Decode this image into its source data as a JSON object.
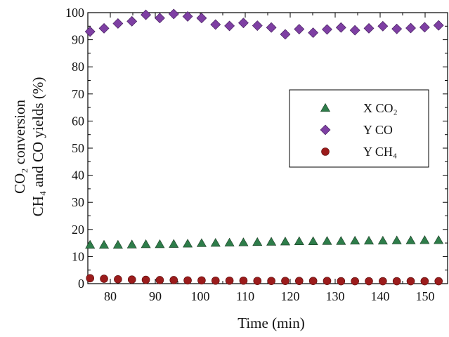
{
  "chart_data": {
    "type": "scatter",
    "title": "",
    "xlabel": "Time (min)",
    "ylabel": {
      "line1": "CO₂ conversion",
      "line2": "CH₄ and CO yields (%)"
    },
    "xlim": [
      75,
      155
    ],
    "ylim": [
      0,
      100
    ],
    "xticks": [
      80,
      90,
      100,
      110,
      120,
      130,
      140,
      150
    ],
    "yticks": [
      0,
      10,
      20,
      30,
      40,
      50,
      60,
      70,
      80,
      90,
      100
    ],
    "grid": false,
    "legend_position": "right-middle",
    "x": [
      75.5,
      78.6,
      81.7,
      84.8,
      87.9,
      91.0,
      94.1,
      97.2,
      100.3,
      103.4,
      106.5,
      109.6,
      112.7,
      115.8,
      118.9,
      122.0,
      125.1,
      128.2,
      131.3,
      134.4,
      137.5,
      140.6,
      143.7,
      146.8,
      149.9,
      153.0
    ],
    "series": [
      {
        "name": "X CO₂",
        "marker": "triangle",
        "color": "#2e7d4a",
        "values": [
          14.3,
          14.3,
          14.3,
          14.4,
          14.5,
          14.5,
          14.6,
          14.7,
          14.9,
          15.0,
          15.1,
          15.2,
          15.3,
          15.4,
          15.5,
          15.6,
          15.6,
          15.7,
          15.7,
          15.8,
          15.8,
          15.8,
          15.9,
          15.9,
          16.0,
          16.0
        ]
      },
      {
        "name": "Y CO",
        "marker": "diamond",
        "color": "#7e3fa3",
        "values": [
          93.0,
          94.2,
          96.0,
          96.8,
          99.2,
          98.0,
          99.5,
          98.6,
          98.0,
          95.6,
          95.1,
          96.2,
          95.2,
          94.5,
          92.0,
          93.9,
          92.6,
          93.8,
          94.5,
          93.5,
          94.2,
          95.0,
          94.0,
          94.3,
          94.6,
          95.3
        ]
      },
      {
        "name": "Y CH₄",
        "marker": "circle",
        "color": "#9b1c1c",
        "values": [
          2.0,
          1.8,
          1.6,
          1.5,
          1.4,
          1.3,
          1.3,
          1.2,
          1.2,
          1.1,
          1.1,
          1.1,
          1.0,
          1.0,
          1.0,
          1.0,
          1.0,
          1.0,
          0.9,
          0.9,
          0.9,
          0.9,
          0.9,
          0.9,
          0.9,
          0.9
        ]
      }
    ]
  }
}
